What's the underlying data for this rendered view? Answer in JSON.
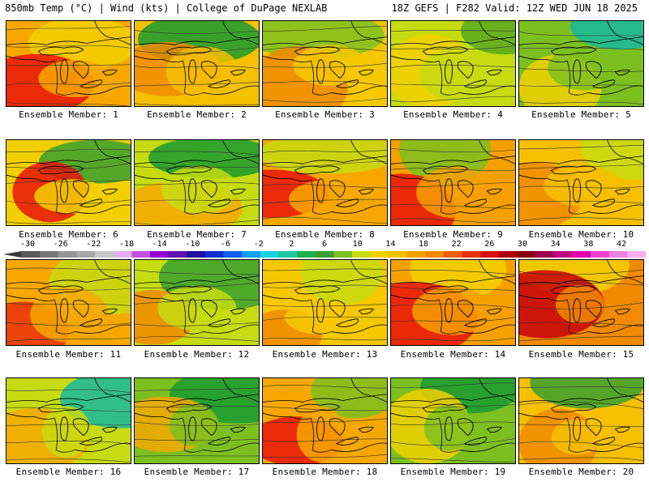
{
  "header": {
    "left": "850mb Temp (°C) | Wind (kts) | College of DuPage NEXLAB",
    "right": "18Z GEFS | F282 Valid: 12Z WED JUN 18 2025"
  },
  "chart_data": {
    "type": "heatmap",
    "variable": "850mb Temp (°C)",
    "panels": [
      {
        "label": "Ensemble Member: 1",
        "member": 1,
        "base": "#f6a800",
        "warm": "#e8140a",
        "cool": "#f2d000"
      },
      {
        "label": "Ensemble Member: 2",
        "member": 2,
        "base": "#f4c000",
        "warm": "#f08a00",
        "cool": "#1a9a30"
      },
      {
        "label": "Ensemble Member: 3",
        "member": 3,
        "base": "#f6c800",
        "warm": "#f08a00",
        "cool": "#7cc020"
      },
      {
        "label": "Ensemble Member: 4",
        "member": 4,
        "base": "#c6dc10",
        "warm": "#f2d000",
        "cool": "#58a820"
      },
      {
        "label": "Ensemble Member: 5",
        "member": 5,
        "base": "#7cc020",
        "warm": "#f2d000",
        "cool": "#18b8a0"
      },
      {
        "label": "Ensemble Member: 6",
        "member": 6,
        "base": "#f2d000",
        "warm": "#e8140a",
        "cool": "#3aa030"
      },
      {
        "label": "Ensemble Member: 7",
        "member": 7,
        "base": "#c6dc10",
        "warm": "#f6a800",
        "cool": "#1a9a30"
      },
      {
        "label": "Ensemble Member: 8",
        "member": 8,
        "base": "#f6a800",
        "warm": "#e8140a",
        "cool": "#c6dc10"
      },
      {
        "label": "Ensemble Member: 9",
        "member": 9,
        "base": "#f6a000",
        "warm": "#e8140a",
        "cool": "#7cc020"
      },
      {
        "label": "Ensemble Member: 10",
        "member": 10,
        "base": "#f6c000",
        "warm": "#f08a00",
        "cool": "#c6dc10"
      },
      {
        "label": "Ensemble Member: 11",
        "member": 11,
        "base": "#f6a800",
        "warm": "#e8300a",
        "cool": "#c6dc10"
      },
      {
        "label": "Ensemble Member: 12",
        "member": 12,
        "base": "#c6dc10",
        "warm": "#f08a00",
        "cool": "#3aa030"
      },
      {
        "label": "Ensemble Member: 13",
        "member": 13,
        "base": "#f6c800",
        "warm": "#f08a00",
        "cool": "#c6dc10"
      },
      {
        "label": "Ensemble Member: 14",
        "member": 14,
        "base": "#f6a000",
        "warm": "#e8140a",
        "cool": "#f2d000"
      },
      {
        "label": "Ensemble Member: 15",
        "member": 15,
        "base": "#f08a00",
        "warm": "#c8000a",
        "cool": "#f2d000"
      },
      {
        "label": "Ensemble Member: 16",
        "member": 16,
        "base": "#c6dc10",
        "warm": "#f6a800",
        "cool": "#18b8a0"
      },
      {
        "label": "Ensemble Member: 17",
        "member": 17,
        "base": "#7cc020",
        "warm": "#f6a800",
        "cool": "#1a9a30"
      },
      {
        "label": "Ensemble Member: 18",
        "member": 18,
        "base": "#f6a800",
        "warm": "#e8140a",
        "cool": "#7cc020"
      },
      {
        "label": "Ensemble Member: 19",
        "member": 19,
        "base": "#7cc020",
        "warm": "#f2d000",
        "cool": "#1a9a30"
      },
      {
        "label": "Ensemble Member: 20",
        "member": 20,
        "base": "#f6c000",
        "warm": "#f08a00",
        "cool": "#3aa030"
      }
    ],
    "colorbar": {
      "ticks": [
        "-30",
        "-26",
        "-22",
        "-18",
        "-14",
        "-10",
        "-6",
        "-2",
        "2",
        "6",
        "10",
        "14",
        "18",
        "22",
        "26",
        "30",
        "34",
        "38",
        "42"
      ],
      "colors": [
        "#5a5a5a",
        "#787878",
        "#969696",
        "#a8a8a8",
        "#c8c8c8",
        "#e0b0f0",
        "#c050e0",
        "#9000d0",
        "#6010b0",
        "#2010a0",
        "#1030d0",
        "#1060f0",
        "#10a0f0",
        "#18d0e0",
        "#20c8a0",
        "#20b050",
        "#3aa030",
        "#7cc020",
        "#c6dc10",
        "#f2d000",
        "#f6c000",
        "#f6a000",
        "#f08a00",
        "#e86000",
        "#e8300a",
        "#d8100a",
        "#b0000a",
        "#880010",
        "#a00050",
        "#c00080",
        "#e000b0",
        "#f040d0",
        "#f080e0",
        "#f8b0f0"
      ]
    }
  }
}
